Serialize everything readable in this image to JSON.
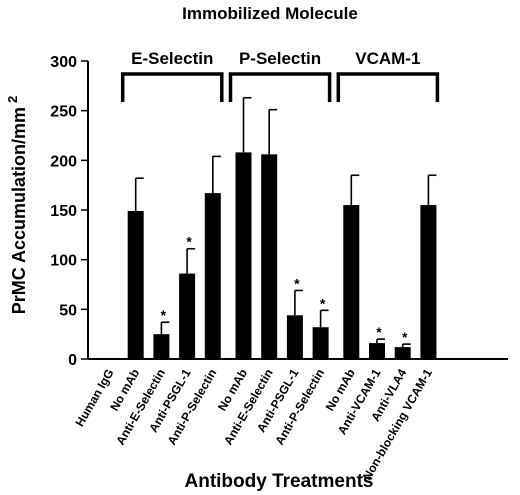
{
  "chart_data": {
    "type": "bar",
    "title": "Immobilized Molecule",
    "xlabel": "Antibody Treatments",
    "ylabel": "PrMC Accumulation/mm",
    "ylabel_sup": "2",
    "ylim": [
      0,
      300
    ],
    "yticks": [
      0,
      50,
      100,
      150,
      200,
      250,
      300
    ],
    "grid": false,
    "groups": [
      {
        "label": "E-Selectin",
        "first": 1,
        "last": 4
      },
      {
        "label": "P-Selectin",
        "first": 5,
        "last": 8
      },
      {
        "label": "VCAM-1",
        "first": 9,
        "last": 12
      }
    ],
    "categories": [
      "Human IgG",
      "No mAb",
      "Anti-E-Selectin",
      "Anti-PSGL-1",
      "Anti-P-Selectin",
      "No mAb",
      "Anti-E-Selectin",
      "Anti-PSGL-1",
      "Anti-P-Selectin",
      "No mAb",
      "Anti-VCAM-1",
      "Anti-VLA4",
      "Non-blocking VCAM-1"
    ],
    "values": [
      0,
      149,
      25,
      86,
      167,
      208,
      206,
      44,
      32,
      155,
      16,
      12,
      155
    ],
    "errors": [
      0,
      33,
      12,
      25,
      37,
      55,
      45,
      25,
      17,
      30,
      4,
      3,
      30
    ],
    "significant": [
      false,
      false,
      true,
      true,
      false,
      false,
      false,
      true,
      true,
      false,
      true,
      true,
      false
    ],
    "significance_mark": "*"
  }
}
